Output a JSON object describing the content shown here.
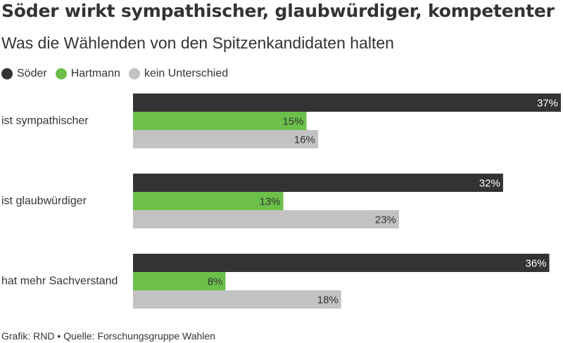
{
  "title": "Söder wirkt sympathischer, glaubwürdiger, kompetenter",
  "subtitle": "Was die Wählenden von den Spitzenkandidaten halten",
  "footer": {
    "credit": "Grafik: RND",
    "separator": "•",
    "source": "Quelle: Forschungsgruppe Wahlen"
  },
  "chart_data": {
    "type": "bar",
    "orientation": "horizontal",
    "categories": [
      "ist sympathischer",
      "ist glaubwürdiger",
      "hat mehr Sachverstand"
    ],
    "series": [
      {
        "name": "Söder",
        "values": [
          37,
          32,
          36
        ],
        "color": "#333333",
        "label_color": "#ffffff"
      },
      {
        "name": "Hartmann",
        "values": [
          15,
          13,
          8
        ],
        "color": "#6cc04a",
        "label_color": "#333333"
      },
      {
        "name": "kein Unterschied",
        "values": [
          16,
          23,
          18
        ],
        "color": "#c2c2c2",
        "label_color": "#333333"
      }
    ],
    "value_suffix": "%",
    "xlim": [
      0,
      37
    ],
    "legend_position": "top-left",
    "grid": false,
    "xlabel": "",
    "ylabel": ""
  }
}
